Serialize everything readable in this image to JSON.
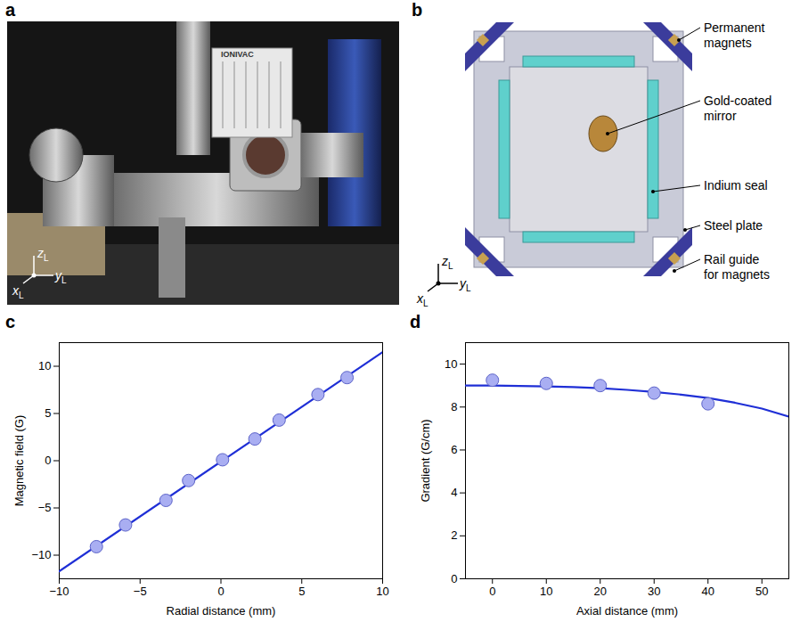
{
  "panel_labels": [
    "a",
    "b",
    "c",
    "d"
  ],
  "photo_a": {
    "device_text": "IONIVAC",
    "coordinate_labels": [
      {
        "letter": "x",
        "subscript": "L"
      },
      {
        "letter": "y",
        "subscript": "L"
      },
      {
        "letter": "z",
        "subscript": "L"
      }
    ]
  },
  "diagram_b": {
    "labels": [
      "Permanent magnets",
      "Gold-coated mirror",
      "Indium seal",
      "Steel plate",
      "Rail guide for magnets"
    ],
    "coordinate_labels": [
      {
        "letter": "x",
        "subscript": "L"
      },
      {
        "letter": "y",
        "subscript": "L"
      },
      {
        "letter": "z",
        "subscript": "L"
      }
    ]
  },
  "chart_data": [
    {
      "type": "scatter",
      "xlabel": "Radial distance (mm)",
      "ylabel": "Magnetic field (G)",
      "xlim": [
        -10,
        10
      ],
      "xticks": [
        -10,
        -5,
        0,
        5,
        10
      ],
      "ylim": [
        -12.5,
        12.5
      ],
      "yticks": [
        -10,
        -5,
        0,
        5,
        10
      ],
      "grid": false,
      "series": [
        {
          "type": "line",
          "line_style": "solid",
          "color": "#1f2fd6",
          "x": [
            -10,
            10
          ],
          "values": [
            -11.7,
            11.5
          ]
        },
        {
          "type": "scatter",
          "marker": "circle",
          "color": "#a9aef2",
          "x": [
            -7.7,
            -5.9,
            -3.4,
            -2.0,
            0.1,
            2.1,
            3.6,
            6.0,
            7.8
          ],
          "values": [
            -9.1,
            -6.8,
            -4.2,
            -2.1,
            0.1,
            2.3,
            4.3,
            7.0,
            8.8
          ]
        }
      ]
    },
    {
      "type": "scatter",
      "xlabel": "Axial distance (mm)",
      "ylabel": "Gradient (G/cm)",
      "xlim": [
        -5,
        55
      ],
      "xticks": [
        0,
        10,
        20,
        30,
        40,
        50
      ],
      "ylim": [
        0,
        11
      ],
      "yticks": [
        0,
        2,
        4,
        6,
        8,
        10
      ],
      "grid": false,
      "series": [
        {
          "type": "line",
          "line_style": "solid",
          "color": "#1f2fd6",
          "x": [
            -5,
            0,
            5,
            10,
            15,
            20,
            25,
            30,
            35,
            40,
            45,
            50,
            55
          ],
          "values": [
            9.0,
            9.0,
            8.98,
            8.96,
            8.93,
            8.88,
            8.8,
            8.7,
            8.58,
            8.42,
            8.2,
            7.93,
            7.55
          ]
        },
        {
          "type": "scatter",
          "marker": "circle",
          "color": "#a9aef2",
          "x": [
            0,
            10,
            20,
            30,
            40
          ],
          "values": [
            9.25,
            9.1,
            9.0,
            8.65,
            8.15
          ]
        }
      ]
    }
  ]
}
